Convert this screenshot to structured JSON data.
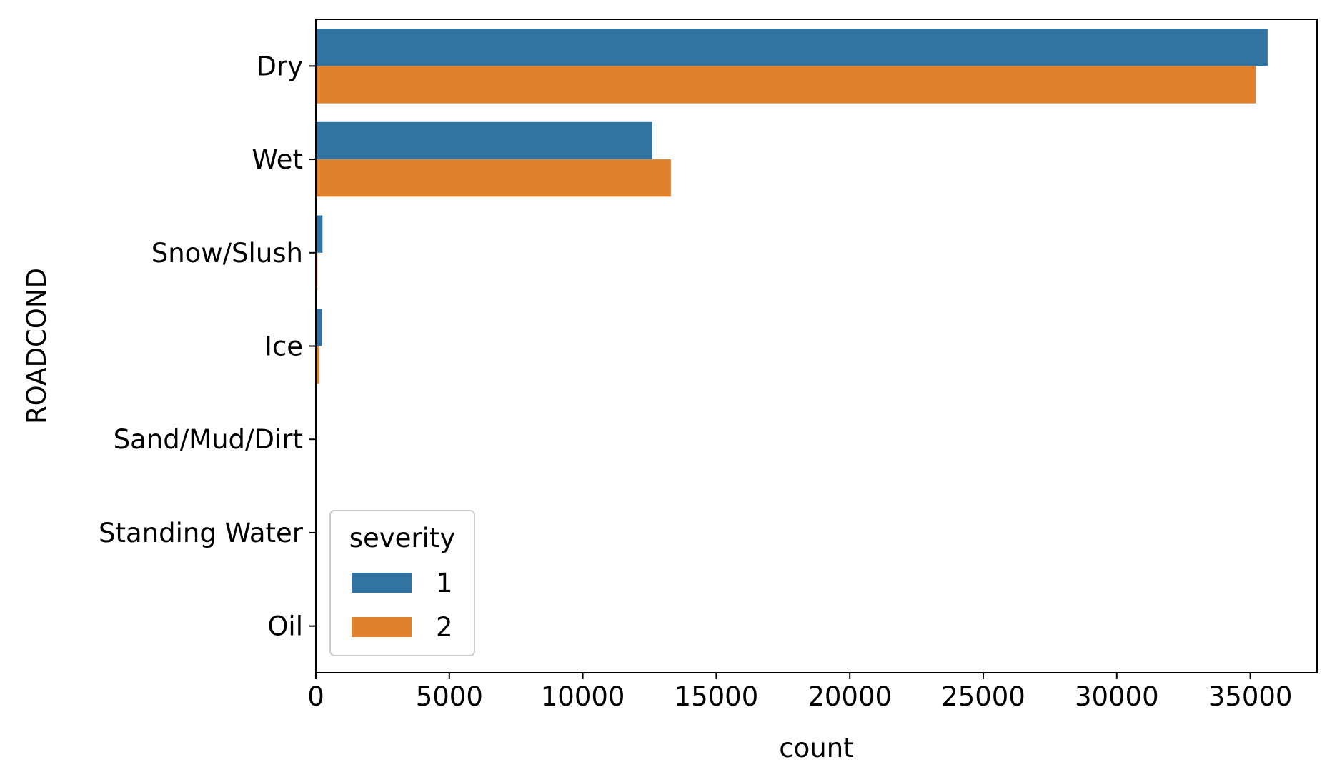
{
  "chart_data": {
    "type": "bar",
    "orientation": "horizontal",
    "categories": [
      "Dry",
      "Wet",
      "Snow/Slush",
      "Ice",
      "Sand/Mud/Dirt",
      "Standing Water",
      "Oil"
    ],
    "series": [
      {
        "name": "1",
        "color": "#3274a1",
        "values": [
          35650,
          12600,
          250,
          220,
          20,
          10,
          5
        ]
      },
      {
        "name": "2",
        "color": "#e1812c",
        "values": [
          35200,
          13300,
          60,
          130,
          15,
          8,
          4
        ]
      }
    ],
    "xlabel": "count",
    "ylabel": "ROADCOND",
    "xlim": [
      0,
      37500
    ],
    "xticks": [
      0,
      5000,
      10000,
      15000,
      20000,
      25000,
      30000,
      35000
    ],
    "grid": false,
    "legend": {
      "title": "severity",
      "placement": "lower-left"
    }
  }
}
